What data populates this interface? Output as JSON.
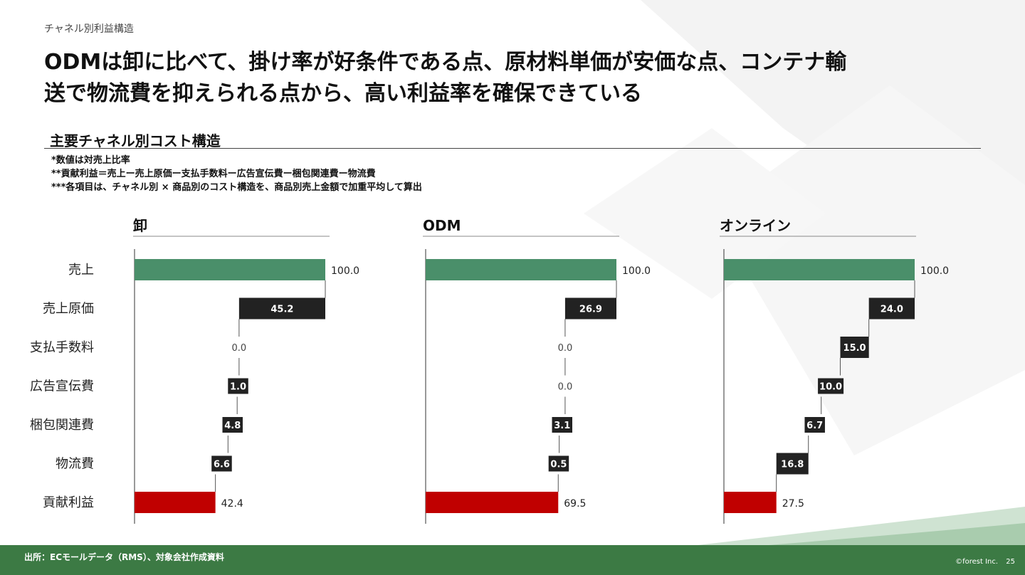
{
  "breadcrumb": "チャネル別利益構造",
  "headline_line1": "ODMは卸に比べて、掛け率が好条件である点、原材料単価が安価な点、コンテナ輸",
  "headline_line2": "送で物流費を抑えられる点から、高い利益率を確保できている",
  "section_title": "主要チャネル別コスト構造",
  "notes": [
    "*数値は対売上比率",
    "**貢献利益＝売上ー売上原価ー支払手数料ー広告宣伝費ー梱包関連費ー物流費",
    "***各項目は、チャネル別 × 商品別のコスト構造を、商品別売上金額で加重平均して算出"
  ],
  "footer": {
    "source": "出所：ECモールデータ（RMS）、対象会社作成資料",
    "copyright": "©forest Inc.",
    "page_number": "25"
  },
  "colors": {
    "total_bar": "#4a8f6a",
    "cost_bar": "#222222",
    "profit_bar": "#c00000",
    "footer_bar": "#3c7a44"
  },
  "chart_data": {
    "type": "bar",
    "subtype": "waterfall",
    "categories": [
      "売上",
      "売上原価",
      "支払手数料",
      "広告宣伝費",
      "梱包関連費",
      "物流費",
      "貢献利益"
    ],
    "xlim": [
      0,
      100
    ],
    "series": [
      {
        "name": "卸",
        "values": [
          100.0,
          45.2,
          0.0,
          1.0,
          4.8,
          6.6,
          42.4
        ],
        "labels": [
          "100.0",
          "45.2",
          "0.0",
          "1.0",
          "4.8",
          "6.6",
          "42.4"
        ]
      },
      {
        "name": "ODM",
        "values": [
          100.0,
          26.9,
          0.0,
          0.0,
          3.1,
          0.5,
          69.5
        ],
        "labels": [
          "100.0",
          "26.9",
          "0.0",
          "0.0",
          "3.1",
          "0.5",
          "69.5"
        ]
      },
      {
        "name": "オンライン",
        "values": [
          100.0,
          24.0,
          15.0,
          10.0,
          6.7,
          16.8,
          27.5
        ],
        "labels": [
          "100.0",
          "24.0",
          "15.0",
          "10.0",
          "6.7",
          "16.8",
          "27.5"
        ]
      }
    ]
  }
}
